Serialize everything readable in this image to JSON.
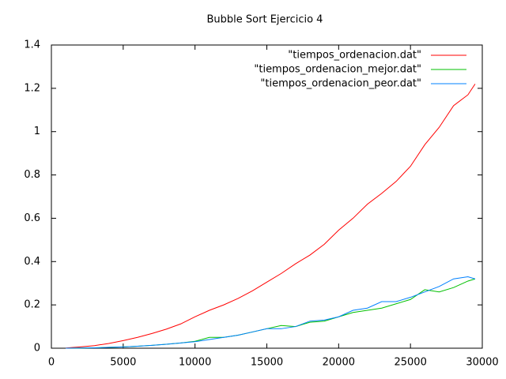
{
  "chart_data": {
    "type": "line",
    "title": "Bubble Sort Ejercicio 4",
    "x": [
      1000,
      2000,
      3000,
      4000,
      5000,
      6000,
      7000,
      8000,
      9000,
      10000,
      11000,
      12000,
      13000,
      14000,
      15000,
      16000,
      17000,
      18000,
      19000,
      20000,
      21000,
      22000,
      23000,
      24000,
      25000,
      26000,
      27000,
      28000,
      29000,
      29500
    ],
    "series": [
      {
        "name": "\"tiempos_ordenacion.dat\"",
        "color": "#ff0000",
        "values": [
          0.001,
          0.006,
          0.012,
          0.022,
          0.035,
          0.05,
          0.068,
          0.088,
          0.112,
          0.145,
          0.175,
          0.2,
          0.23,
          0.265,
          0.305,
          0.345,
          0.39,
          0.43,
          0.48,
          0.545,
          0.6,
          0.665,
          0.715,
          0.77,
          0.84,
          0.94,
          1.02,
          1.12,
          1.17,
          1.22
        ]
      },
      {
        "name": "\"tiempos_ordenacion_mejor.dat\"",
        "color": "#00c000",
        "values": [
          0,
          0.001,
          0.002,
          0.004,
          0.006,
          0.009,
          0.013,
          0.018,
          0.024,
          0.032,
          0.05,
          0.05,
          0.06,
          0.075,
          0.09,
          0.105,
          0.1,
          0.12,
          0.125,
          0.145,
          0.165,
          0.175,
          0.185,
          0.205,
          0.225,
          0.27,
          0.26,
          0.28,
          0.31,
          0.32
        ]
      },
      {
        "name": "\"tiempos_ordenacion_peor.dat\"",
        "color": "#0080ff",
        "values": [
          0,
          0.001,
          0.002,
          0.004,
          0.006,
          0.009,
          0.013,
          0.018,
          0.024,
          0.03,
          0.04,
          0.05,
          0.06,
          0.075,
          0.09,
          0.09,
          0.1,
          0.125,
          0.13,
          0.145,
          0.175,
          0.185,
          0.215,
          0.215,
          0.235,
          0.26,
          0.285,
          0.32,
          0.33,
          0.32
        ]
      }
    ],
    "xlim": [
      0,
      30000
    ],
    "xticks": [
      0,
      5000,
      10000,
      15000,
      20000,
      25000,
      30000
    ],
    "ylim": [
      0,
      1.4
    ],
    "yticks": [
      0,
      0.2,
      0.4,
      0.6,
      0.8,
      1,
      1.2,
      1.4
    ],
    "grid": false,
    "legend": "top-right"
  }
}
